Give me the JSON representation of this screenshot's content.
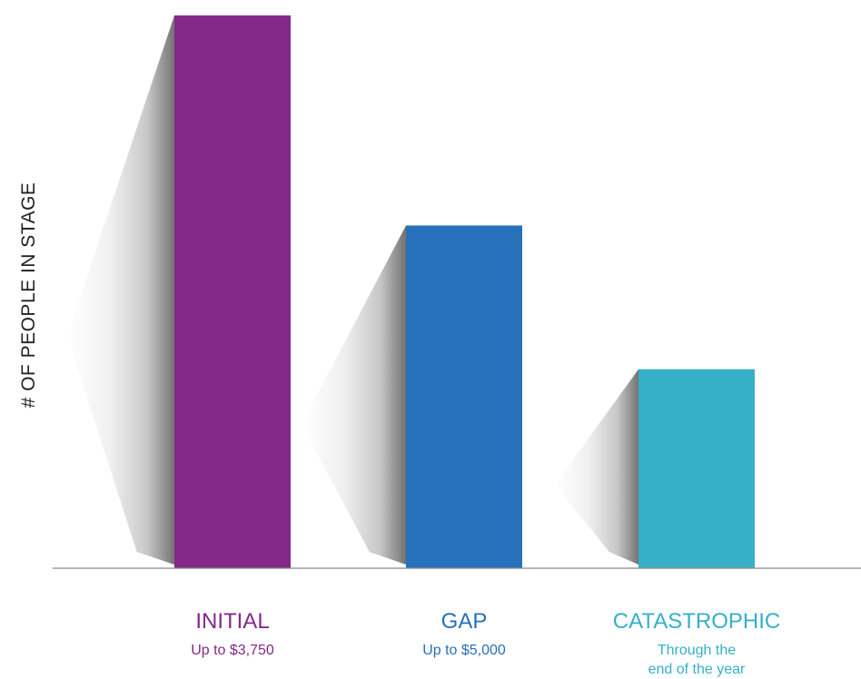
{
  "chart_data": {
    "type": "bar",
    "title": "",
    "xlabel": "",
    "ylabel": "# OF PEOPLE IN STAGE",
    "ylim": [
      0,
      100
    ],
    "grid": false,
    "categories": [
      "INITIAL",
      "GAP",
      "CATASTROPHIC"
    ],
    "subtitles": [
      [
        "Up to $3,750"
      ],
      [
        "Up to $5,000"
      ],
      [
        "Through the",
        "end of the year"
      ]
    ],
    "values": [
      100,
      62,
      36
    ],
    "colors": [
      "#84298a",
      "#2770ba",
      "#35b0c8"
    ],
    "label_colors": [
      "#84298a",
      "#2770ba",
      "#35b0c8"
    ]
  }
}
